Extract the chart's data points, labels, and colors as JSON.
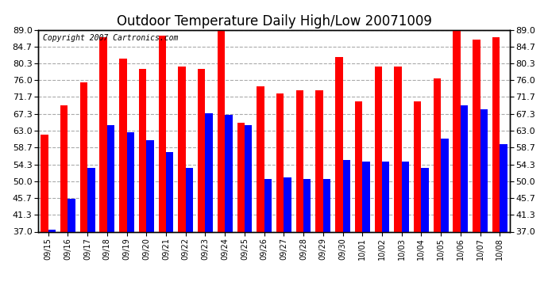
{
  "title": "Outdoor Temperature Daily High/Low 20071009",
  "copyright": "Copyright 2007 Cartronics.com",
  "dates": [
    "09/15",
    "09/16",
    "09/17",
    "09/18",
    "09/19",
    "09/20",
    "09/21",
    "09/22",
    "09/23",
    "09/24",
    "09/25",
    "09/26",
    "09/27",
    "09/28",
    "09/29",
    "09/30",
    "10/01",
    "10/02",
    "10/03",
    "10/04",
    "10/05",
    "10/06",
    "10/07",
    "10/08"
  ],
  "highs": [
    62.0,
    69.5,
    75.5,
    87.0,
    81.5,
    79.0,
    87.5,
    79.5,
    79.0,
    89.0,
    65.0,
    74.5,
    72.5,
    73.5,
    73.5,
    82.0,
    70.5,
    79.5,
    79.5,
    70.5,
    76.5,
    89.0,
    86.5,
    87.0
  ],
  "lows": [
    37.5,
    45.5,
    53.5,
    64.5,
    62.5,
    60.5,
    57.5,
    53.5,
    67.5,
    67.0,
    64.5,
    50.5,
    51.0,
    50.5,
    50.5,
    55.5,
    55.0,
    55.0,
    55.0,
    53.5,
    61.0,
    69.5,
    68.5,
    59.5
  ],
  "high_color": "#ff0000",
  "low_color": "#0000ff",
  "ylim_min": 37.0,
  "ylim_max": 89.0,
  "yticks": [
    37.0,
    41.3,
    45.7,
    50.0,
    54.3,
    58.7,
    63.0,
    67.3,
    71.7,
    76.0,
    80.3,
    84.7,
    89.0
  ],
  "background_color": "#ffffff",
  "plot_bg_color": "#ffffff",
  "grid_color": "#aaaaaa",
  "bar_width": 0.38,
  "title_fontsize": 12,
  "copyright_fontsize": 7,
  "tick_fontsize": 8
}
